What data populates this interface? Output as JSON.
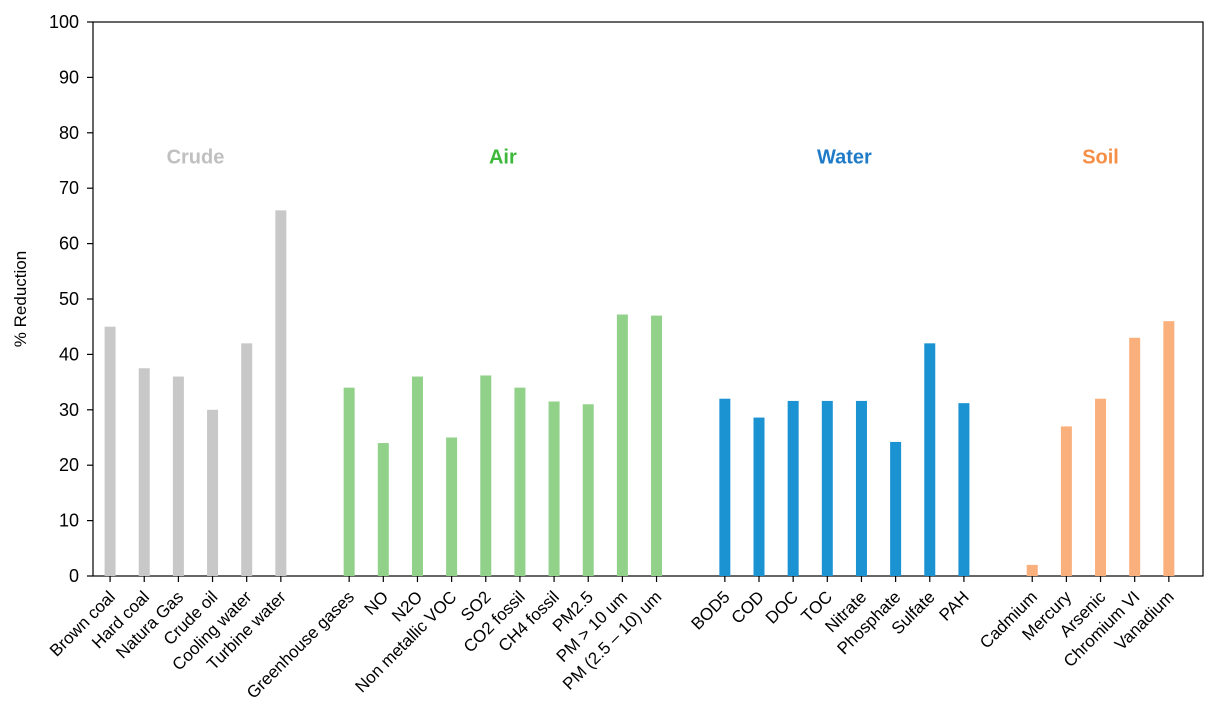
{
  "chart_data": {
    "type": "bar",
    "ylabel": "% Reduction",
    "xlabel": "",
    "ylim": [
      0,
      100
    ],
    "yticks": [
      0,
      10,
      20,
      30,
      40,
      50,
      60,
      70,
      80,
      90,
      100
    ],
    "grid": false,
    "groups": [
      {
        "name": "Crude",
        "color": "#c8c8c8",
        "categories": [
          "Brown coal",
          "Hard coal",
          "Natura Gas",
          "Crude oil",
          "Cooling water",
          "Turbine water"
        ],
        "values": [
          45,
          37.5,
          36,
          30,
          42,
          66
        ]
      },
      {
        "name": "Air",
        "color": "#92d18a",
        "categories": [
          "Greenhouse gases",
          "NO",
          "N2O",
          "Non metallic VOC",
          "SO2",
          "CO2 fossil",
          "CH4 fossil",
          "PM2.5",
          "PM > 10 um",
          "PM (2.5 – 10) um"
        ],
        "values": [
          34,
          24,
          36,
          25,
          36.2,
          34,
          31.5,
          31,
          47.2,
          47
        ]
      },
      {
        "name": "Water",
        "color": "#1b93d3",
        "categories": [
          "BOD5",
          "COD",
          "DOC",
          "TOC",
          "Nitrate",
          "Phosphate",
          "Sulfate",
          "PAH"
        ],
        "values": [
          32,
          28.6,
          31.6,
          31.6,
          31.6,
          24.2,
          42,
          31.2
        ]
      },
      {
        "name": "Soil",
        "color": "#f9b07c",
        "categories": [
          "Cadmium",
          "Mercury",
          "Arsenic",
          "Chromium VI",
          "Vanadium"
        ],
        "values": [
          2,
          27,
          32,
          43,
          46
        ]
      }
    ],
    "group_label_colors": {
      "Crude": "#c0c0c0",
      "Air": "#3db83a",
      "Water": "#1f7bc7",
      "Soil": "#f58f45"
    }
  }
}
